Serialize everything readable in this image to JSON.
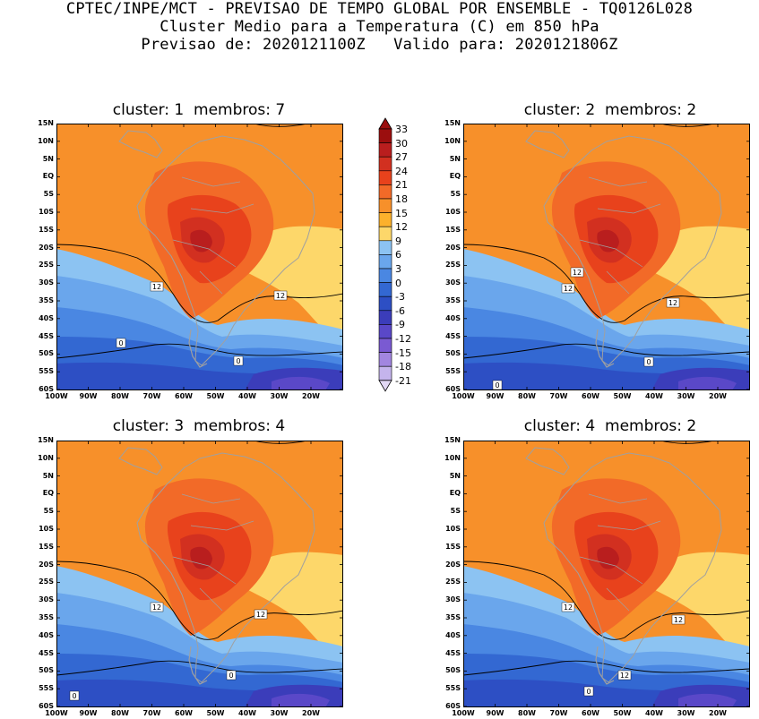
{
  "header": {
    "line1": "CPTEC/INPE/MCT - PREVISAO DE TEMPO GLOBAL POR ENSEMBLE - TQ0126L028",
    "line2": "Cluster Medio para a Temperatura (C) em 850 hPa",
    "line3": "Previsao de: 2020121100Z   Valido para: 2020121806Z"
  },
  "panels": [
    {
      "title": "cluster: 1  membros: 7",
      "contour_labels": [
        "12",
        "12",
        "0",
        "0"
      ]
    },
    {
      "title": "cluster: 2  membros: 2",
      "contour_labels": [
        "12",
        "12",
        "12",
        "0",
        "0"
      ]
    },
    {
      "title": "cluster: 3  membros: 4",
      "contour_labels": [
        "12",
        "12",
        "0",
        "0"
      ]
    },
    {
      "title": "cluster: 4  membros: 2",
      "contour_labels": [
        "12",
        "12",
        "12",
        "0"
      ]
    }
  ],
  "lat_ticks": [
    "15N",
    "10N",
    "5N",
    "EQ",
    "5S",
    "10S",
    "15S",
    "20S",
    "25S",
    "30S",
    "35S",
    "40S",
    "45S",
    "50S",
    "55S",
    "60S"
  ],
  "lon_ticks": [
    "100W",
    "90W",
    "80W",
    "70W",
    "60W",
    "50W",
    "40W",
    "30W",
    "20W"
  ],
  "colorbar": {
    "labels": [
      "33",
      "30",
      "27",
      "24",
      "21",
      "18",
      "15",
      "12",
      "9",
      "6",
      "3",
      "0",
      "-3",
      "-6",
      "-9",
      "-12",
      "-15",
      "-18",
      "-21"
    ],
    "colors": [
      "#9b0e0e",
      "#b91e1e",
      "#d23020",
      "#e8421c",
      "#f26a28",
      "#f7902a",
      "#fcb12c",
      "#fdd76a",
      "#8cc3f2",
      "#6aa6ec",
      "#4a87e2",
      "#3368d2",
      "#2d4fc4",
      "#3b3dba",
      "#5a48c8",
      "#7a5ad2",
      "#a286e0",
      "#c4b4ec"
    ]
  },
  "colors": {
    "warm_bg": "#f7a21e",
    "land_hot": "#ee6125",
    "coastline": "#a0a0a0"
  }
}
